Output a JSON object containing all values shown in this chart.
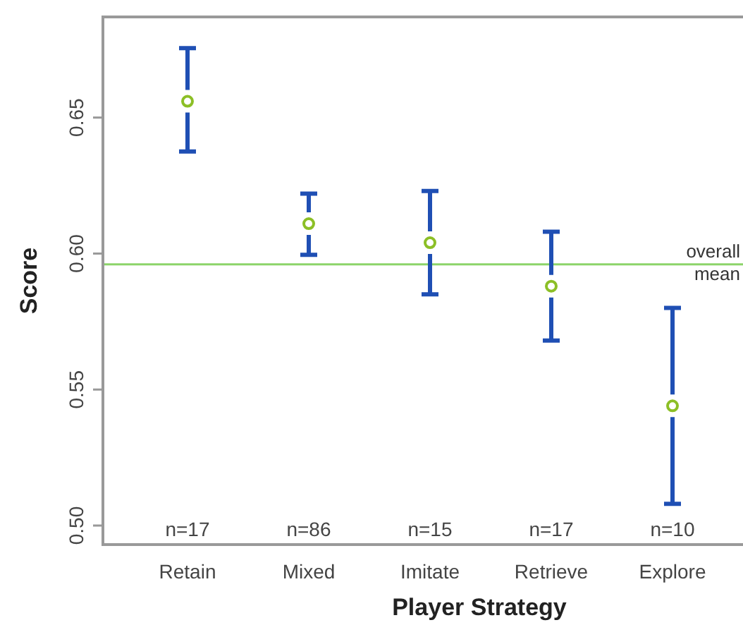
{
  "chart_data": {
    "type": "scatter",
    "xlabel": "Player Strategy",
    "ylabel": "Score",
    "categories": [
      "Retain",
      "Mixed",
      "Imitate",
      "Retrieve",
      "Explore"
    ],
    "series": [
      {
        "color": "#8cbf26",
        "values": [
          0.656,
          0.611,
          0.604,
          0.588,
          0.544
        ],
        "errors": [
          [
            0.6375,
            0.6755
          ],
          [
            0.5995,
            0.622
          ],
          [
            0.585,
            0.623
          ],
          [
            0.568,
            0.608
          ],
          [
            0.508,
            0.58
          ]
        ]
      }
    ],
    "marker": "circle",
    "ylim": [
      0.493,
      0.687
    ],
    "yticks": [
      {
        "value": 0.5,
        "label": "0.50"
      },
      {
        "value": 0.55,
        "label": "0.55"
      },
      {
        "value": 0.6,
        "label": "0.60"
      },
      {
        "value": 0.65,
        "label": "0.65"
      }
    ],
    "ref_lines": [
      {
        "axis": "y",
        "value": 0.596,
        "label": "overall mean",
        "color": "#8cd46a"
      }
    ],
    "annotations": [
      "n=17",
      "n=86",
      "n=15",
      "n=17",
      "n=10"
    ]
  }
}
